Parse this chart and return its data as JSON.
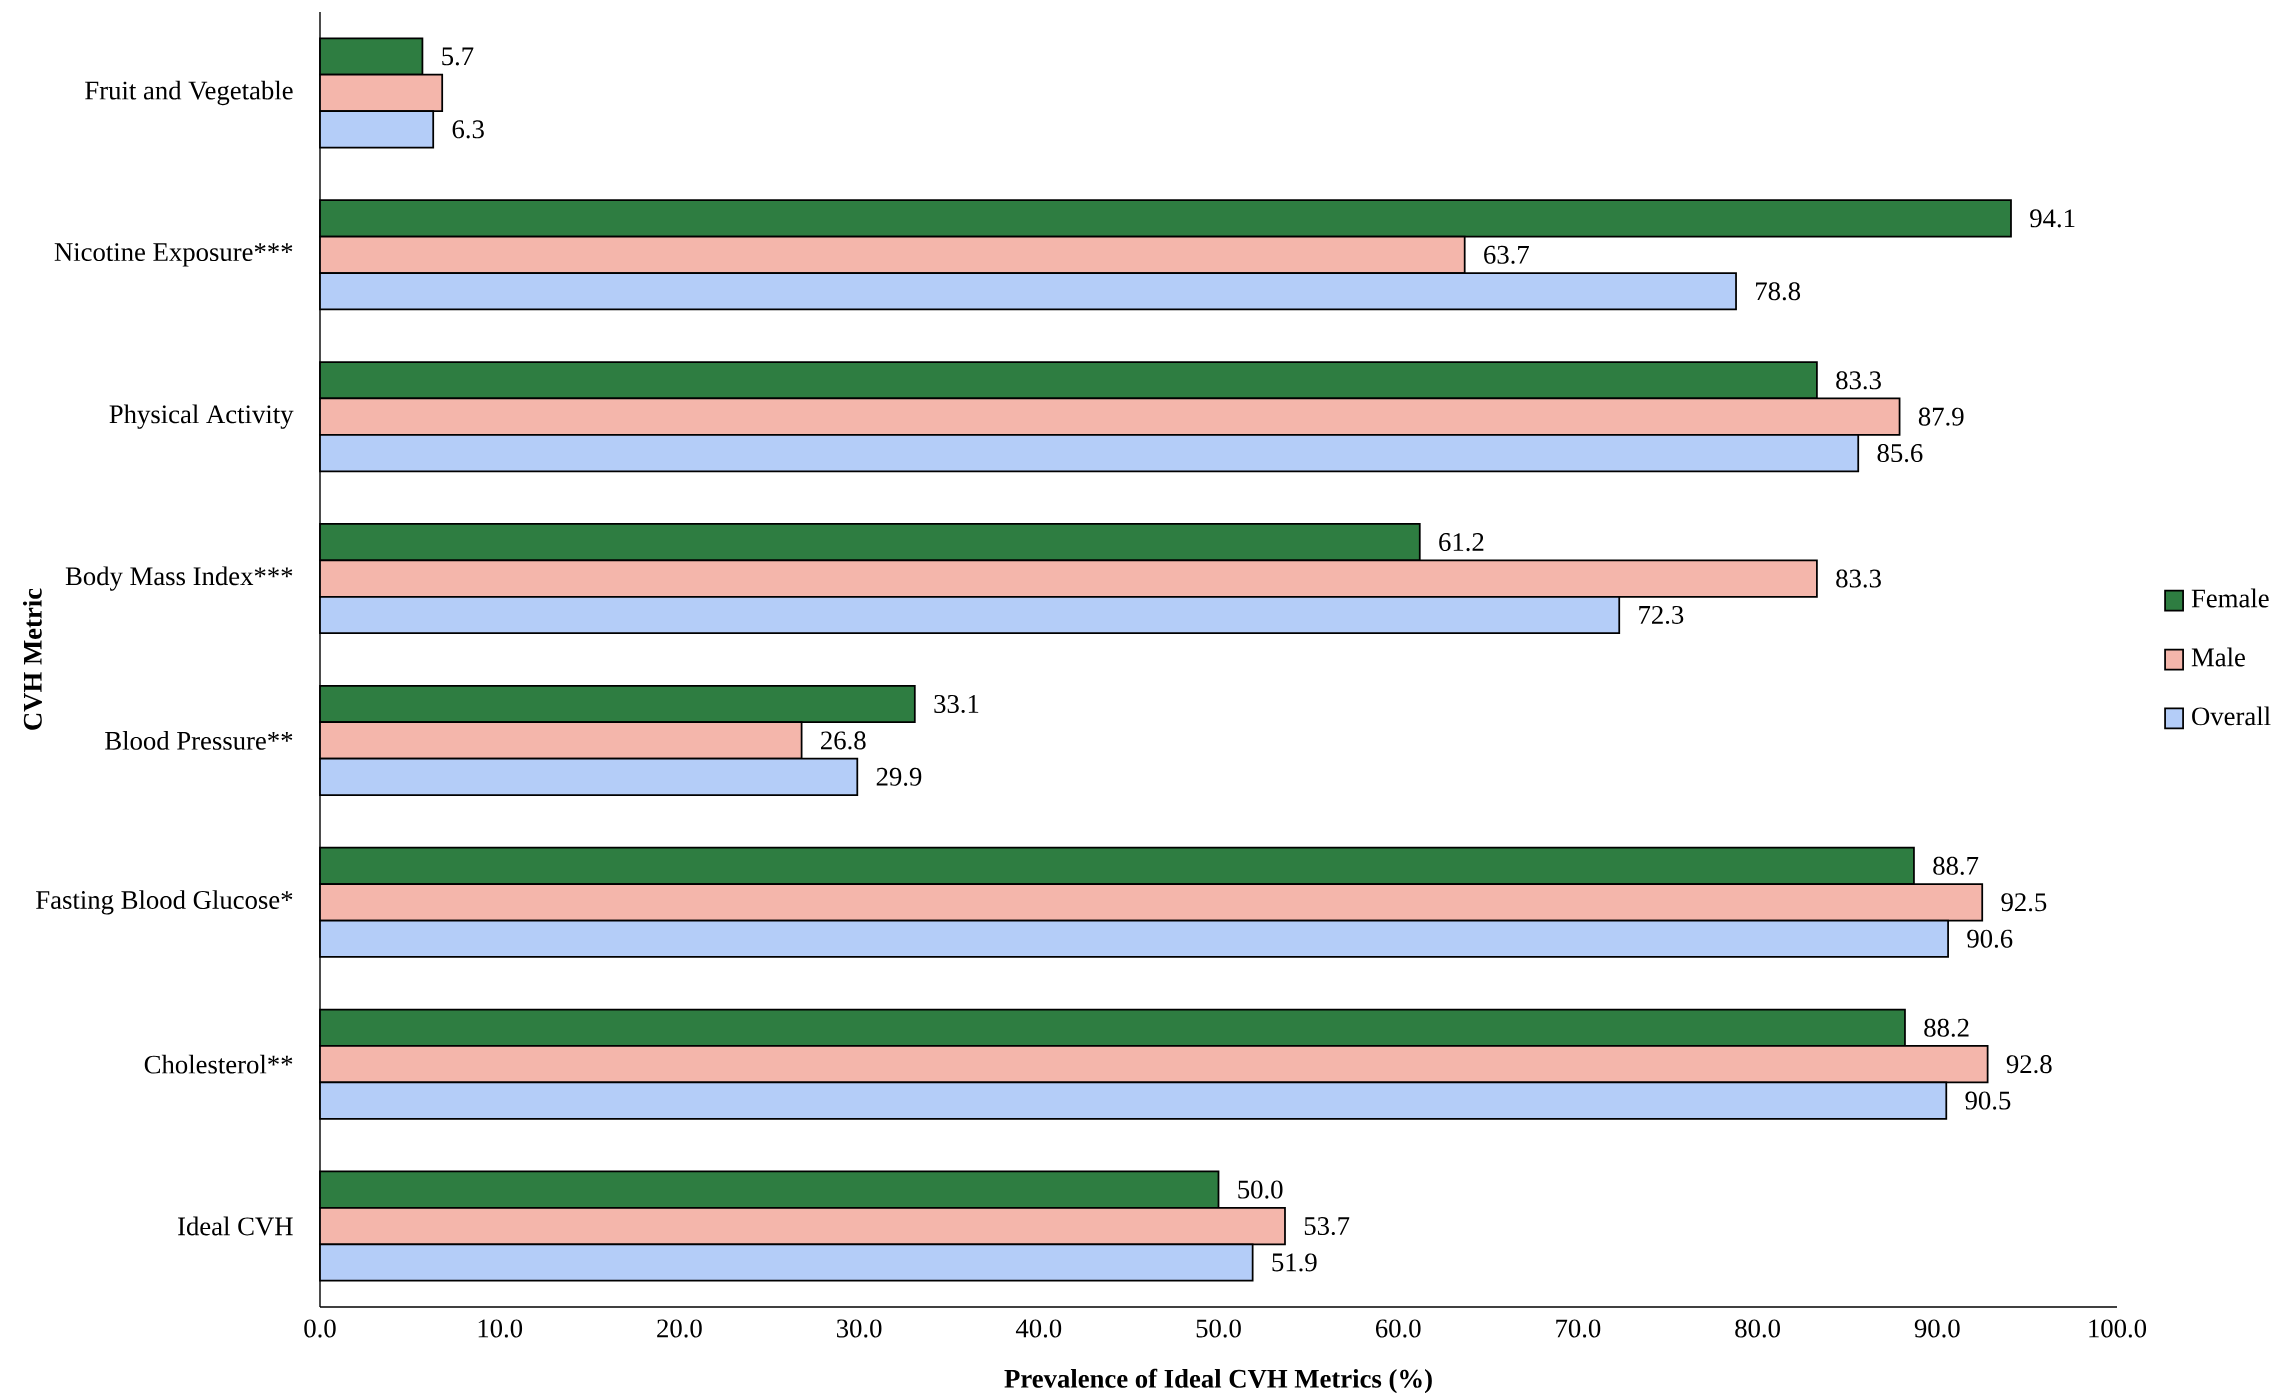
{
  "chart_data": {
    "type": "bar",
    "orientation": "horizontal",
    "xlabel": "Prevalence of Ideal CVH Metrics (%)",
    "ylabel": "CVH Metric",
    "categories": [
      "Fruit and Vegetable",
      "Nicotine Exposure***",
      "Physical Activity",
      "Body Mass Index***",
      "Blood Pressure**",
      "Fasting Blood Glucose*",
      "Cholesterol**",
      "Ideal CVH"
    ],
    "series": [
      {
        "name": "Female",
        "color": "#2e7d41",
        "values": [
          5.7,
          94.1,
          83.3,
          61.2,
          33.1,
          88.7,
          88.2,
          50.0
        ],
        "value_labels": [
          "5.7",
          "94.1",
          "83.3",
          "61.2",
          "33.1",
          "88.7",
          "88.2",
          "50.0"
        ]
      },
      {
        "name": "Male",
        "color": "#f4b6ab",
        "values": [
          6.8,
          63.7,
          87.9,
          83.3,
          26.8,
          92.5,
          92.8,
          53.7
        ],
        "value_labels": [
          null,
          "63.7",
          "87.9",
          "83.3",
          "26.8",
          "92.5",
          "92.8",
          "53.7"
        ]
      },
      {
        "name": "Overall",
        "color": "#b4cdf8",
        "values": [
          6.3,
          78.8,
          85.6,
          72.3,
          29.9,
          90.6,
          90.5,
          51.9
        ],
        "value_labels": [
          "6.3",
          "78.8",
          "85.6",
          "72.3",
          "29.9",
          "90.6",
          "90.5",
          "51.9"
        ]
      }
    ],
    "xlim": [
      0,
      100
    ],
    "xticks": [
      {
        "value": 0,
        "label": "0.0"
      },
      {
        "value": 10,
        "label": "10.0"
      },
      {
        "value": 20,
        "label": "20.0"
      },
      {
        "value": 30,
        "label": "30.0"
      },
      {
        "value": 40,
        "label": "40.0"
      },
      {
        "value": 50,
        "label": "50.0"
      },
      {
        "value": 60,
        "label": "60.0"
      },
      {
        "value": 70,
        "label": "70.0"
      },
      {
        "value": 80,
        "label": "80.0"
      },
      {
        "value": 90,
        "label": "90.0"
      },
      {
        "value": 100,
        "label": "100.0"
      }
    ],
    "grid": false,
    "legend": "right"
  }
}
